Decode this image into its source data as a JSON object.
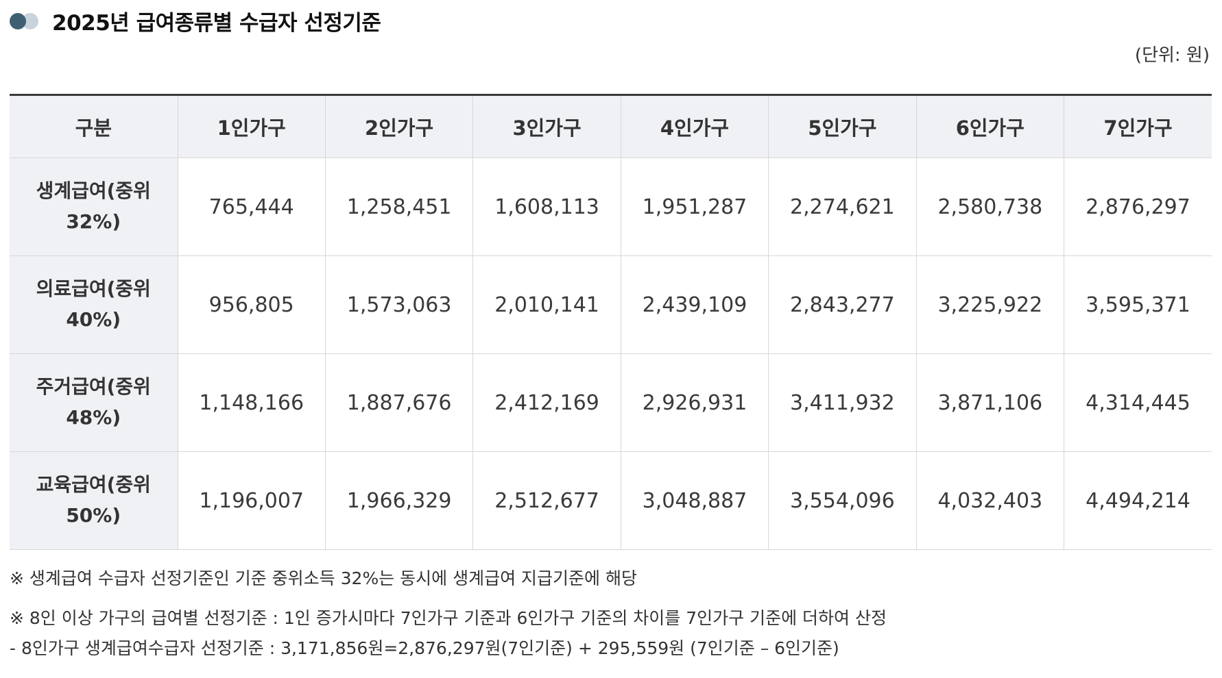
{
  "title": "2025년 급여종류별 수급자 선정기준",
  "unit": "(단위: 원)",
  "table": {
    "headers": [
      "구분",
      "1인가구",
      "2인가구",
      "3인가구",
      "4인가구",
      "5인가구",
      "6인가구",
      "7인가구"
    ],
    "rows": [
      {
        "label_line1": "생계급여(중위",
        "label_line2": "32%)",
        "values": [
          "765,444",
          "1,258,451",
          "1,608,113",
          "1,951,287",
          "2,274,621",
          "2,580,738",
          "2,876,297"
        ]
      },
      {
        "label_line1": "의료급여(중위",
        "label_line2": "40%)",
        "values": [
          "956,805",
          "1,573,063",
          "2,010,141",
          "2,439,109",
          "2,843,277",
          "3,225,922",
          "3,595,371"
        ]
      },
      {
        "label_line1": "주거급여(중위",
        "label_line2": "48%)",
        "values": [
          "1,148,166",
          "1,887,676",
          "2,412,169",
          "2,926,931",
          "3,411,932",
          "3,871,106",
          "4,314,445"
        ]
      },
      {
        "label_line1": "교육급여(중위",
        "label_line2": "50%)",
        "values": [
          "1,196,007",
          "1,966,329",
          "2,512,677",
          "3,048,887",
          "3,554,096",
          "4,032,403",
          "4,494,214"
        ]
      }
    ]
  },
  "notes": [
    "※ 생계급여 수급자 선정기준인 기준 중위소득 32%는 동시에 생계급여 지급기준에 해당",
    "※ 8인 이상 가구의 급여별 선정기준 : 1인 증가시마다 7인가구 기준과 6인가구 기준의 차이를 7인가구 기준에 더하여 산정",
    "- 8인가구 생계급여수급자 선정기준 : 3,171,856원=2,876,297원(7인기준) + 295,559원 (7인기준 – 6인기준)"
  ],
  "colors": {
    "accent_dark": "#3e6072",
    "accent_light": "#c9d3dc",
    "header_bg": "#f0f1f5"
  },
  "icons": {
    "title_marker": "two-dots-icon"
  }
}
